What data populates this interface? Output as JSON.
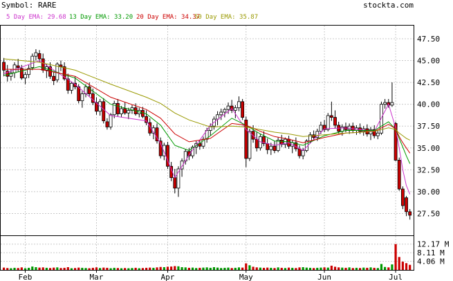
{
  "header": {
    "symbol_label": "Symbol: RARE",
    "site": "stockta.com"
  },
  "ema_legend": [
    {
      "label": "5 Day EMA: 29.68",
      "color": "#cc33cc"
    },
    {
      "label": "13 Day EMA: 33.20",
      "color": "#009900"
    },
    {
      "label": "20 Day EMA: 34.37",
      "color": "#cc0000"
    },
    {
      "label": "50 Day EMA: 35.87",
      "color": "#999900"
    }
  ],
  "colors": {
    "grid": "#c8c8c8",
    "up_candle": "#ffffff",
    "down_candle": "#cc0000",
    "volume_up": "#009900",
    "volume_down": "#cc0000",
    "ema5": "#cc33cc",
    "ema13": "#009900",
    "ema20": "#cc0000",
    "ema50": "#999900"
  },
  "chart_data": [
    {
      "type": "candlestick",
      "title": "Symbol: RARE",
      "ylim": [
        25.0,
        49.0
      ],
      "y_ticks": [
        27.5,
        30.0,
        32.5,
        35.0,
        37.5,
        40.0,
        42.5,
        45.0,
        47.5
      ],
      "y_tick_labels": [
        "27.50",
        "30.00",
        "32.50",
        "35.00",
        "37.50",
        "40.00",
        "42.50",
        "45.00",
        "47.50"
      ],
      "x_tick_labels": [
        "Feb",
        "Mar",
        "Apr",
        "May",
        "Jun",
        "Jul"
      ],
      "x_tick_index": [
        6,
        26,
        46,
        68,
        90,
        110
      ],
      "grid": true,
      "ohlc": [
        [
          44.8,
          45.3,
          43.2,
          43.9
        ],
        [
          43.8,
          44.5,
          42.6,
          43.2
        ],
        [
          43.2,
          44.0,
          42.7,
          43.6
        ],
        [
          43.6,
          44.8,
          43.0,
          44.5
        ],
        [
          44.4,
          45.2,
          43.7,
          44.2
        ],
        [
          44.1,
          44.5,
          42.8,
          43.0
        ],
        [
          43.0,
          43.7,
          42.3,
          43.4
        ],
        [
          43.4,
          44.5,
          43.0,
          44.1
        ],
        [
          44.2,
          45.8,
          43.9,
          45.5
        ],
        [
          45.5,
          46.3,
          45.0,
          45.9
        ],
        [
          45.8,
          46.2,
          44.8,
          45.2
        ],
        [
          45.2,
          45.8,
          43.6,
          43.9
        ],
        [
          43.9,
          44.6,
          43.0,
          44.3
        ],
        [
          44.3,
          44.8,
          42.9,
          43.2
        ],
        [
          43.2,
          43.7,
          42.2,
          42.7
        ],
        [
          42.8,
          44.8,
          42.5,
          44.6
        ],
        [
          44.5,
          45.0,
          43.8,
          44.3
        ],
        [
          44.3,
          44.8,
          42.7,
          42.9
        ],
        [
          42.9,
          43.5,
          41.2,
          41.6
        ],
        [
          41.6,
          42.6,
          41.2,
          42.4
        ],
        [
          42.4,
          43.2,
          41.7,
          42.0
        ],
        [
          42.0,
          42.3,
          40.1,
          40.4
        ],
        [
          40.4,
          41.5,
          39.6,
          41.2
        ],
        [
          41.2,
          42.3,
          40.8,
          42.0
        ],
        [
          42.0,
          42.5,
          40.9,
          41.2
        ],
        [
          41.2,
          41.8,
          39.9,
          40.2
        ],
        [
          40.2,
          40.8,
          38.8,
          39.2
        ],
        [
          39.2,
          40.6,
          38.7,
          40.3
        ],
        [
          40.3,
          40.7,
          37.8,
          38.1
        ],
        [
          38.0,
          38.4,
          37.1,
          37.4
        ],
        [
          37.4,
          39.0,
          37.1,
          38.8
        ],
        [
          38.8,
          40.4,
          38.4,
          40.1
        ],
        [
          40.1,
          40.6,
          38.6,
          38.9
        ],
        [
          38.9,
          39.8,
          38.5,
          39.5
        ],
        [
          39.5,
          40.2,
          38.8,
          39.0
        ],
        [
          39.0,
          39.6,
          38.3,
          39.3
        ],
        [
          39.3,
          39.9,
          38.9,
          39.6
        ],
        [
          39.6,
          40.1,
          38.7,
          38.9
        ],
        [
          38.9,
          39.6,
          38.5,
          39.3
        ],
        [
          39.3,
          39.7,
          38.4,
          38.6
        ],
        [
          38.6,
          39.3,
          37.6,
          37.9
        ],
        [
          37.9,
          38.4,
          36.4,
          36.7
        ],
        [
          36.7,
          37.6,
          36.0,
          37.3
        ],
        [
          37.3,
          37.8,
          35.5,
          35.8
        ],
        [
          35.8,
          36.2,
          33.8,
          34.1
        ],
        [
          34.1,
          35.6,
          33.6,
          35.3
        ],
        [
          35.3,
          35.7,
          32.6,
          32.9
        ],
        [
          32.9,
          33.4,
          31.2,
          31.6
        ],
        [
          31.6,
          32.6,
          29.8,
          30.4
        ],
        [
          30.4,
          32.9,
          29.4,
          32.6
        ],
        [
          32.6,
          33.8,
          31.7,
          33.5
        ],
        [
          33.5,
          34.9,
          33.1,
          34.6
        ],
        [
          34.6,
          35.0,
          33.6,
          34.1
        ],
        [
          34.1,
          35.3,
          33.8,
          35.1
        ],
        [
          35.1,
          35.8,
          34.3,
          35.5
        ],
        [
          35.5,
          35.9,
          34.8,
          35.2
        ],
        [
          35.2,
          36.3,
          34.9,
          36.0
        ],
        [
          36.0,
          37.3,
          35.6,
          37.0
        ],
        [
          37.0,
          37.8,
          36.4,
          37.5
        ],
        [
          37.5,
          38.6,
          37.1,
          38.3
        ],
        [
          38.3,
          39.2,
          37.6,
          38.8
        ],
        [
          38.8,
          39.5,
          38.2,
          39.1
        ],
        [
          39.1,
          39.6,
          38.5,
          39.4
        ],
        [
          39.4,
          40.2,
          38.9,
          39.8
        ],
        [
          39.8,
          40.5,
          39.0,
          39.3
        ],
        [
          39.3,
          39.9,
          38.4,
          39.6
        ],
        [
          39.6,
          40.9,
          39.2,
          40.3
        ],
        [
          40.3,
          40.6,
          38.2,
          38.5
        ],
        [
          38.2,
          38.6,
          32.8,
          33.8
        ],
        [
          33.8,
          37.2,
          33.5,
          36.9
        ],
        [
          36.9,
          37.6,
          35.6,
          36.0
        ],
        [
          36.0,
          36.8,
          34.6,
          35.0
        ],
        [
          35.0,
          36.6,
          34.7,
          36.3
        ],
        [
          36.3,
          36.9,
          35.2,
          35.5
        ],
        [
          35.5,
          36.1,
          34.3,
          34.8
        ],
        [
          34.8,
          35.6,
          34.2,
          35.2
        ],
        [
          35.2,
          35.8,
          34.4,
          34.7
        ],
        [
          34.7,
          36.2,
          34.5,
          35.9
        ],
        [
          35.9,
          36.5,
          35.1,
          35.4
        ],
        [
          35.4,
          36.2,
          35.0,
          36.0
        ],
        [
          36.0,
          36.4,
          34.9,
          35.2
        ],
        [
          35.2,
          35.9,
          34.4,
          35.6
        ],
        [
          35.6,
          36.2,
          34.6,
          34.9
        ],
        [
          34.9,
          35.3,
          33.8,
          34.1
        ],
        [
          34.1,
          35.0,
          33.7,
          34.7
        ],
        [
          34.7,
          36.0,
          34.5,
          35.8
        ],
        [
          35.8,
          36.8,
          35.5,
          36.5
        ],
        [
          36.5,
          37.0,
          35.9,
          36.2
        ],
        [
          36.2,
          37.2,
          35.8,
          36.9
        ],
        [
          36.9,
          38.0,
          36.6,
          37.6
        ],
        [
          37.6,
          38.2,
          36.8,
          37.1
        ],
        [
          37.1,
          39.0,
          36.9,
          38.7
        ],
        [
          38.7,
          40.3,
          38.1,
          38.5
        ],
        [
          38.5,
          39.3,
          37.2,
          37.6
        ],
        [
          37.6,
          38.0,
          36.6,
          36.9
        ],
        [
          36.9,
          37.7,
          36.4,
          37.4
        ],
        [
          37.4,
          37.9,
          36.8,
          37.1
        ],
        [
          37.1,
          37.8,
          36.6,
          37.5
        ],
        [
          37.5,
          37.9,
          36.7,
          37.0
        ],
        [
          37.0,
          37.6,
          36.5,
          37.3
        ],
        [
          37.3,
          37.8,
          36.6,
          36.9
        ],
        [
          36.9,
          37.5,
          36.4,
          37.2
        ],
        [
          37.2,
          37.7,
          36.3,
          36.6
        ],
        [
          36.6,
          37.4,
          35.9,
          37.1
        ],
        [
          37.1,
          37.6,
          36.1,
          36.4
        ],
        [
          36.4,
          37.0,
          36.0,
          36.7
        ],
        [
          36.7,
          40.3,
          36.5,
          40.0
        ],
        [
          40.0,
          40.6,
          39.5,
          40.2
        ],
        [
          40.2,
          40.6,
          39.6,
          39.9
        ],
        [
          39.9,
          42.5,
          39.7,
          40.2
        ],
        [
          37.8,
          38.0,
          33.5,
          33.6
        ],
        [
          33.6,
          33.9,
          30.1,
          30.3
        ],
        [
          30.3,
          30.6,
          28.0,
          28.4
        ],
        [
          29.3,
          29.5,
          27.2,
          27.7
        ],
        [
          27.7,
          28.0,
          26.8,
          27.3
        ]
      ],
      "ema_series": [
        {
          "name": "5 Day EMA: 29.68",
          "x": [
            0,
            10,
            20,
            30,
            40,
            44,
            48,
            52,
            58,
            64,
            68,
            72,
            76,
            80,
            84,
            90,
            96,
            104,
            108,
            110,
            111,
            112,
            113,
            114
          ],
          "values": [
            43.5,
            45.0,
            42.3,
            38.7,
            38.1,
            35.5,
            31.6,
            34.2,
            37.6,
            39.5,
            37.1,
            35.7,
            35.3,
            35.6,
            34.7,
            37.2,
            37.3,
            36.9,
            40.0,
            37.3,
            35.0,
            32.5,
            30.7,
            29.7
          ]
        },
        {
          "name": "13 Day EMA: 33.20",
          "x": [
            0,
            10,
            20,
            30,
            40,
            44,
            48,
            52,
            58,
            64,
            68,
            72,
            76,
            80,
            84,
            90,
            96,
            104,
            108,
            110,
            111,
            112,
            113,
            114
          ],
          "values": [
            43.3,
            44.3,
            43.0,
            40.0,
            38.9,
            37.6,
            35.3,
            34.7,
            36.4,
            38.4,
            37.6,
            36.6,
            35.8,
            35.7,
            35.3,
            36.4,
            37.0,
            37.0,
            38.0,
            37.1,
            36.1,
            35.1,
            34.1,
            33.2
          ]
        },
        {
          "name": "20 Day EMA: 34.37",
          "x": [
            0,
            10,
            20,
            30,
            40,
            44,
            48,
            52,
            58,
            64,
            68,
            72,
            76,
            80,
            84,
            90,
            96,
            104,
            108,
            110,
            111,
            112,
            113,
            114
          ],
          "values": [
            44.0,
            44.0,
            43.2,
            40.8,
            39.4,
            38.4,
            36.6,
            35.7,
            36.1,
            37.8,
            37.6,
            36.9,
            36.3,
            36.0,
            35.6,
            36.2,
            36.7,
            36.9,
            37.7,
            37.2,
            36.3,
            35.6,
            35.0,
            34.4
          ]
        },
        {
          "name": "50 Day EMA: 35.87",
          "x": [
            0,
            10,
            20,
            30,
            40,
            44,
            48,
            52,
            58,
            64,
            68,
            72,
            76,
            80,
            84,
            90,
            96,
            104,
            108,
            110,
            111,
            112,
            113,
            114
          ],
          "values": [
            45.2,
            44.8,
            43.9,
            42.3,
            40.8,
            40.1,
            39.0,
            38.2,
            37.4,
            37.5,
            37.4,
            37.1,
            36.8,
            36.6,
            36.3,
            36.5,
            36.7,
            36.9,
            37.3,
            37.1,
            36.7,
            36.4,
            36.1,
            35.9
          ]
        }
      ]
    },
    {
      "type": "bar",
      "title": "",
      "ylim": [
        0,
        16.0
      ],
      "y_ticks": [
        4.06,
        8.11,
        12.17
      ],
      "y_tick_labels": [
        "4.06 M",
        "8.11 M",
        "12.17 M"
      ],
      "volume_millions": [
        1.1,
        0.9,
        0.8,
        1.0,
        0.9,
        1.2,
        0.8,
        1.0,
        1.6,
        1.3,
        1.1,
        1.2,
        1.0,
        0.9,
        1.1,
        1.2,
        0.9,
        1.0,
        1.3,
        0.8,
        0.9,
        1.1,
        1.0,
        0.9,
        0.8,
        1.0,
        1.2,
        0.9,
        1.1,
        1.0,
        0.8,
        1.0,
        0.9,
        0.8,
        0.9,
        0.8,
        0.9,
        1.0,
        0.8,
        0.9,
        1.0,
        1.1,
        1.0,
        1.2,
        1.4,
        1.3,
        1.5,
        1.6,
        1.8,
        1.7,
        1.3,
        1.2,
        1.0,
        1.1,
        0.9,
        1.0,
        1.1,
        1.2,
        1.0,
        1.3,
        1.1,
        0.9,
        1.0,
        1.1,
        0.9,
        1.0,
        1.2,
        1.1,
        3.1,
        2.2,
        1.5,
        1.2,
        1.1,
        1.0,
        1.1,
        1.0,
        0.9,
        1.2,
        1.0,
        0.9,
        1.1,
        1.0,
        0.9,
        1.2,
        1.3,
        1.1,
        1.0,
        0.9,
        1.0,
        1.1,
        1.2,
        1.1,
        2.0,
        1.5,
        1.2,
        1.1,
        1.0,
        1.2,
        0.9,
        1.0,
        0.9,
        1.1,
        1.0,
        1.2,
        1.0,
        0.9,
        2.8,
        1.4,
        1.2,
        2.6,
        12.2,
        6.1,
        3.9,
        3.2,
        2.4
      ]
    }
  ]
}
